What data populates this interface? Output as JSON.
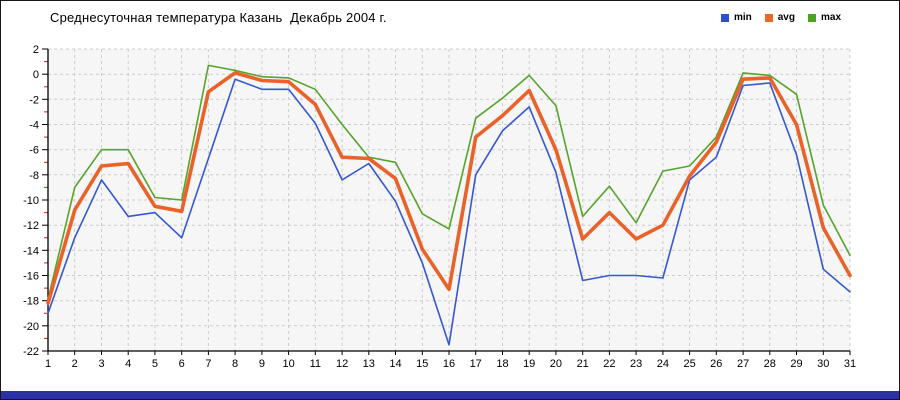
{
  "window": {
    "background": "#ffffff",
    "border_color": "#161616",
    "footer_bar_color": "#2b2fa8"
  },
  "header": {
    "title": "Среднесуточная температура Казань  Декабрь 2004 г."
  },
  "legend": {
    "items": [
      {
        "label": "min",
        "color": "#2e50c8"
      },
      {
        "label": "avg",
        "color": "#ec6826"
      },
      {
        "label": "max",
        "color": "#4aa41f"
      }
    ]
  },
  "chart_data": {
    "type": "line",
    "title": "Среднесуточная температура Казань  Декабрь 2004 г.",
    "xlabel": "",
    "ylabel": "",
    "categories": [
      1,
      2,
      3,
      4,
      5,
      6,
      7,
      8,
      9,
      10,
      11,
      12,
      13,
      14,
      15,
      16,
      17,
      18,
      19,
      20,
      21,
      22,
      23,
      24,
      25,
      26,
      27,
      28,
      29,
      30,
      31
    ],
    "series": [
      {
        "name": "min",
        "color": "#3558cd",
        "width": 1.6,
        "values": [
          -19.0,
          -13.0,
          -8.4,
          -11.3,
          -11.0,
          -13.0,
          -6.7,
          -0.4,
          -1.2,
          -1.2,
          -3.9,
          -8.4,
          -7.1,
          -10.1,
          -15.0,
          -21.5,
          -8.0,
          -4.5,
          -2.6,
          -7.8,
          -16.4,
          -16.0,
          -16.0,
          -16.2,
          -8.4,
          -6.6,
          -0.9,
          -0.7,
          -6.4,
          -15.5,
          -17.3
        ]
      },
      {
        "name": "avg",
        "color": "#e8622a",
        "width": 3.6,
        "values": [
          -18.2,
          -10.8,
          -7.3,
          -7.1,
          -10.5,
          -10.9,
          -1.4,
          0.1,
          -0.5,
          -0.6,
          -2.4,
          -6.6,
          -6.7,
          -8.3,
          -13.9,
          -17.1,
          -5.0,
          -3.3,
          -1.3,
          -6.0,
          -13.1,
          -11.0,
          -13.1,
          -12.0,
          -8.1,
          -5.4,
          -0.4,
          -0.3,
          -4.0,
          -12.2,
          -16.0
        ]
      },
      {
        "name": "max",
        "color": "#55a42c",
        "width": 1.6,
        "values": [
          -17.9,
          -9.0,
          -6.0,
          -6.0,
          -9.8,
          -10.0,
          0.7,
          0.3,
          -0.2,
          -0.3,
          -1.2,
          -4.0,
          -6.6,
          -7.0,
          -11.1,
          -12.3,
          -3.5,
          -1.9,
          -0.1,
          -2.5,
          -11.3,
          -8.9,
          -11.8,
          -7.7,
          -7.3,
          -5.0,
          0.1,
          -0.1,
          -1.6,
          -10.4,
          -14.4
        ]
      }
    ],
    "ylim": [
      -22,
      2
    ],
    "y_major_step": 2,
    "y_tick_labels": [
      "2",
      "0",
      "-2",
      "-4",
      "-6",
      "-8",
      "-10",
      "-12",
      "-14",
      "-16",
      "-18",
      "-20",
      "-22"
    ],
    "grid": "dashed",
    "grid_color": "#cccccc",
    "plot_bg": "#f6f6f6",
    "axis_color": "#000000",
    "minor_tick_color": "#cc2222",
    "legend_position": "top-right"
  }
}
